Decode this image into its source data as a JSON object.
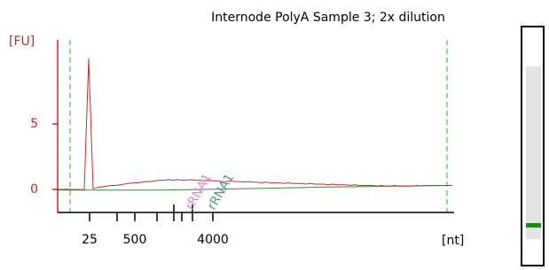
{
  "chart_data": {
    "type": "line",
    "title": "Internode PolyA Sample 3; 2x dilution",
    "y_label": "[FU]",
    "x_label": "[nt]",
    "ylim": [
      -1.76,
      11.42
    ],
    "yticks": [
      0,
      5
    ],
    "x_tick_labels": [
      "25",
      "500",
      "4000"
    ],
    "annotations": [
      {
        "text": "rRNA1",
        "color": "#e87fe0"
      },
      {
        "text": "rRNA1",
        "color": "#4a9a90"
      }
    ],
    "series": [
      {
        "color": "#c0302a",
        "values": [
          0,
          0,
          0.02,
          0,
          0,
          -0.02,
          0,
          10,
          0.05,
          0.15,
          0.2,
          0.25,
          0.3,
          0.3,
          0.35,
          0.4,
          0.45,
          0.5,
          0.5,
          0.55,
          0.6,
          0.6,
          0.65,
          0.7,
          0.7,
          0.75,
          0.7,
          0.75,
          0.7,
          0.7,
          0.75,
          0.7,
          0.7,
          0.65,
          0.7,
          0.65,
          0.65,
          0.6,
          0.6,
          0.65,
          0.6,
          0.6,
          0.55,
          0.6,
          0.55,
          0.55,
          0.5,
          0.55,
          0.5,
          0.5,
          0.5,
          0.45,
          0.5,
          0.45,
          0.45,
          0.45,
          0.4,
          0.45,
          0.4,
          0.4,
          0.4,
          0.35,
          0.4,
          0.35,
          0.35,
          0.35,
          0.3,
          0.35,
          0.3,
          0.3,
          0.3,
          0.3,
          0.25,
          0.3,
          0.25,
          0.25,
          0.3,
          0.25,
          0.25,
          0.25,
          0.25,
          0.3,
          0.25,
          0.3,
          0.3,
          0.3,
          0.3,
          0.3,
          0.3,
          0.3
        ]
      },
      {
        "color": "#3a8a3a",
        "values": [
          -0.05,
          -0.05,
          -0.05,
          -0.05,
          -0.05,
          -0.05,
          -0.03,
          0,
          0.03,
          0.06,
          0.09,
          0.12,
          0.15,
          0.18,
          0.2,
          0.22,
          0.25,
          0.27,
          0.29,
          0.3
        ]
      }
    ]
  }
}
